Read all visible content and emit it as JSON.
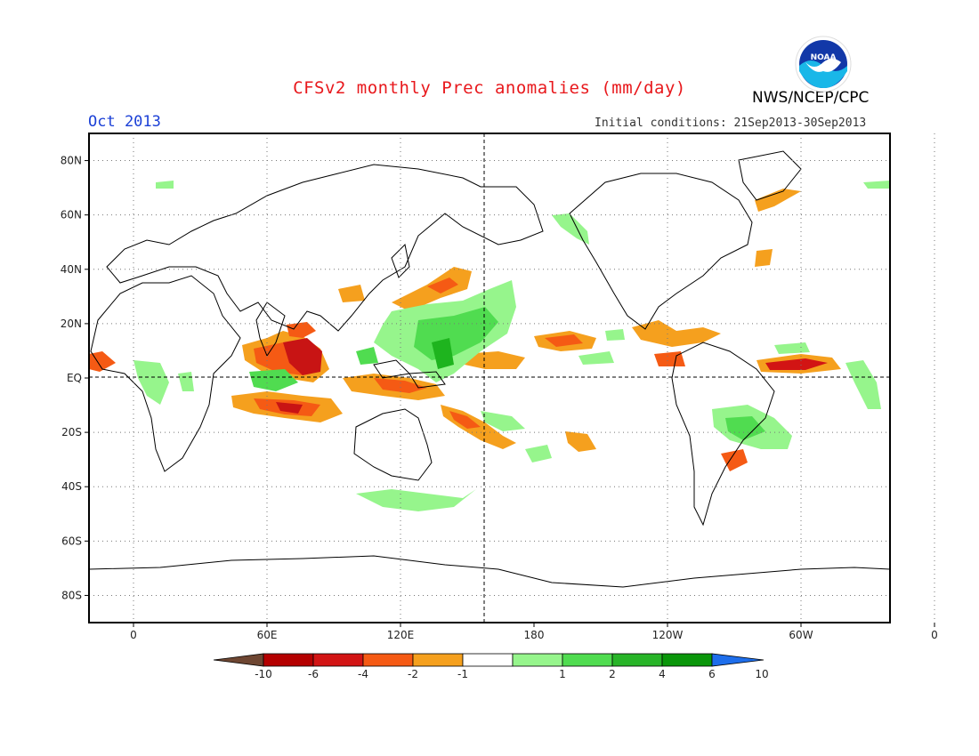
{
  "header": {
    "title": "CFSv2 monthly Prec anomalies (mm/day)",
    "agency": "NWS/NCEP/CPC",
    "period": "Oct 2013",
    "initial_conditions": "Initial conditions: 21Sep2013-30Sep2013"
  },
  "logo": {
    "text": "NOAA",
    "icon": "noaa-logo-icon"
  },
  "map": {
    "projection": "equirectangular",
    "lon_range": [
      -20,
      340
    ],
    "lat_range": [
      -90,
      90
    ],
    "grid": true,
    "lat_ticks": [
      "80N",
      "60N",
      "40N",
      "20N",
      "EQ",
      "20S",
      "40S",
      "60S",
      "80S"
    ],
    "lon_ticks": [
      "0",
      "60E",
      "120E",
      "180",
      "120W",
      "60W",
      "0"
    ],
    "colors": {
      "wet_light": "#96f58c",
      "wet_mid": "#50dc50",
      "wet_strong": "#1eb41e",
      "dry_light": "#f5a01e",
      "dry_mid": "#f55a14",
      "dry_strong": "#c81414"
    }
  },
  "colorbar": {
    "labels": [
      "-10",
      "-6",
      "-4",
      "-2",
      "-1",
      "1",
      "2",
      "4",
      "6",
      "10"
    ],
    "colors": [
      "#6e4632",
      "#b40000",
      "#d21414",
      "#f55a14",
      "#f5a01e",
      "#ffffff",
      "#96f58c",
      "#50dc50",
      "#28b428",
      "#0a960a",
      "#1e6eeb"
    ]
  }
}
